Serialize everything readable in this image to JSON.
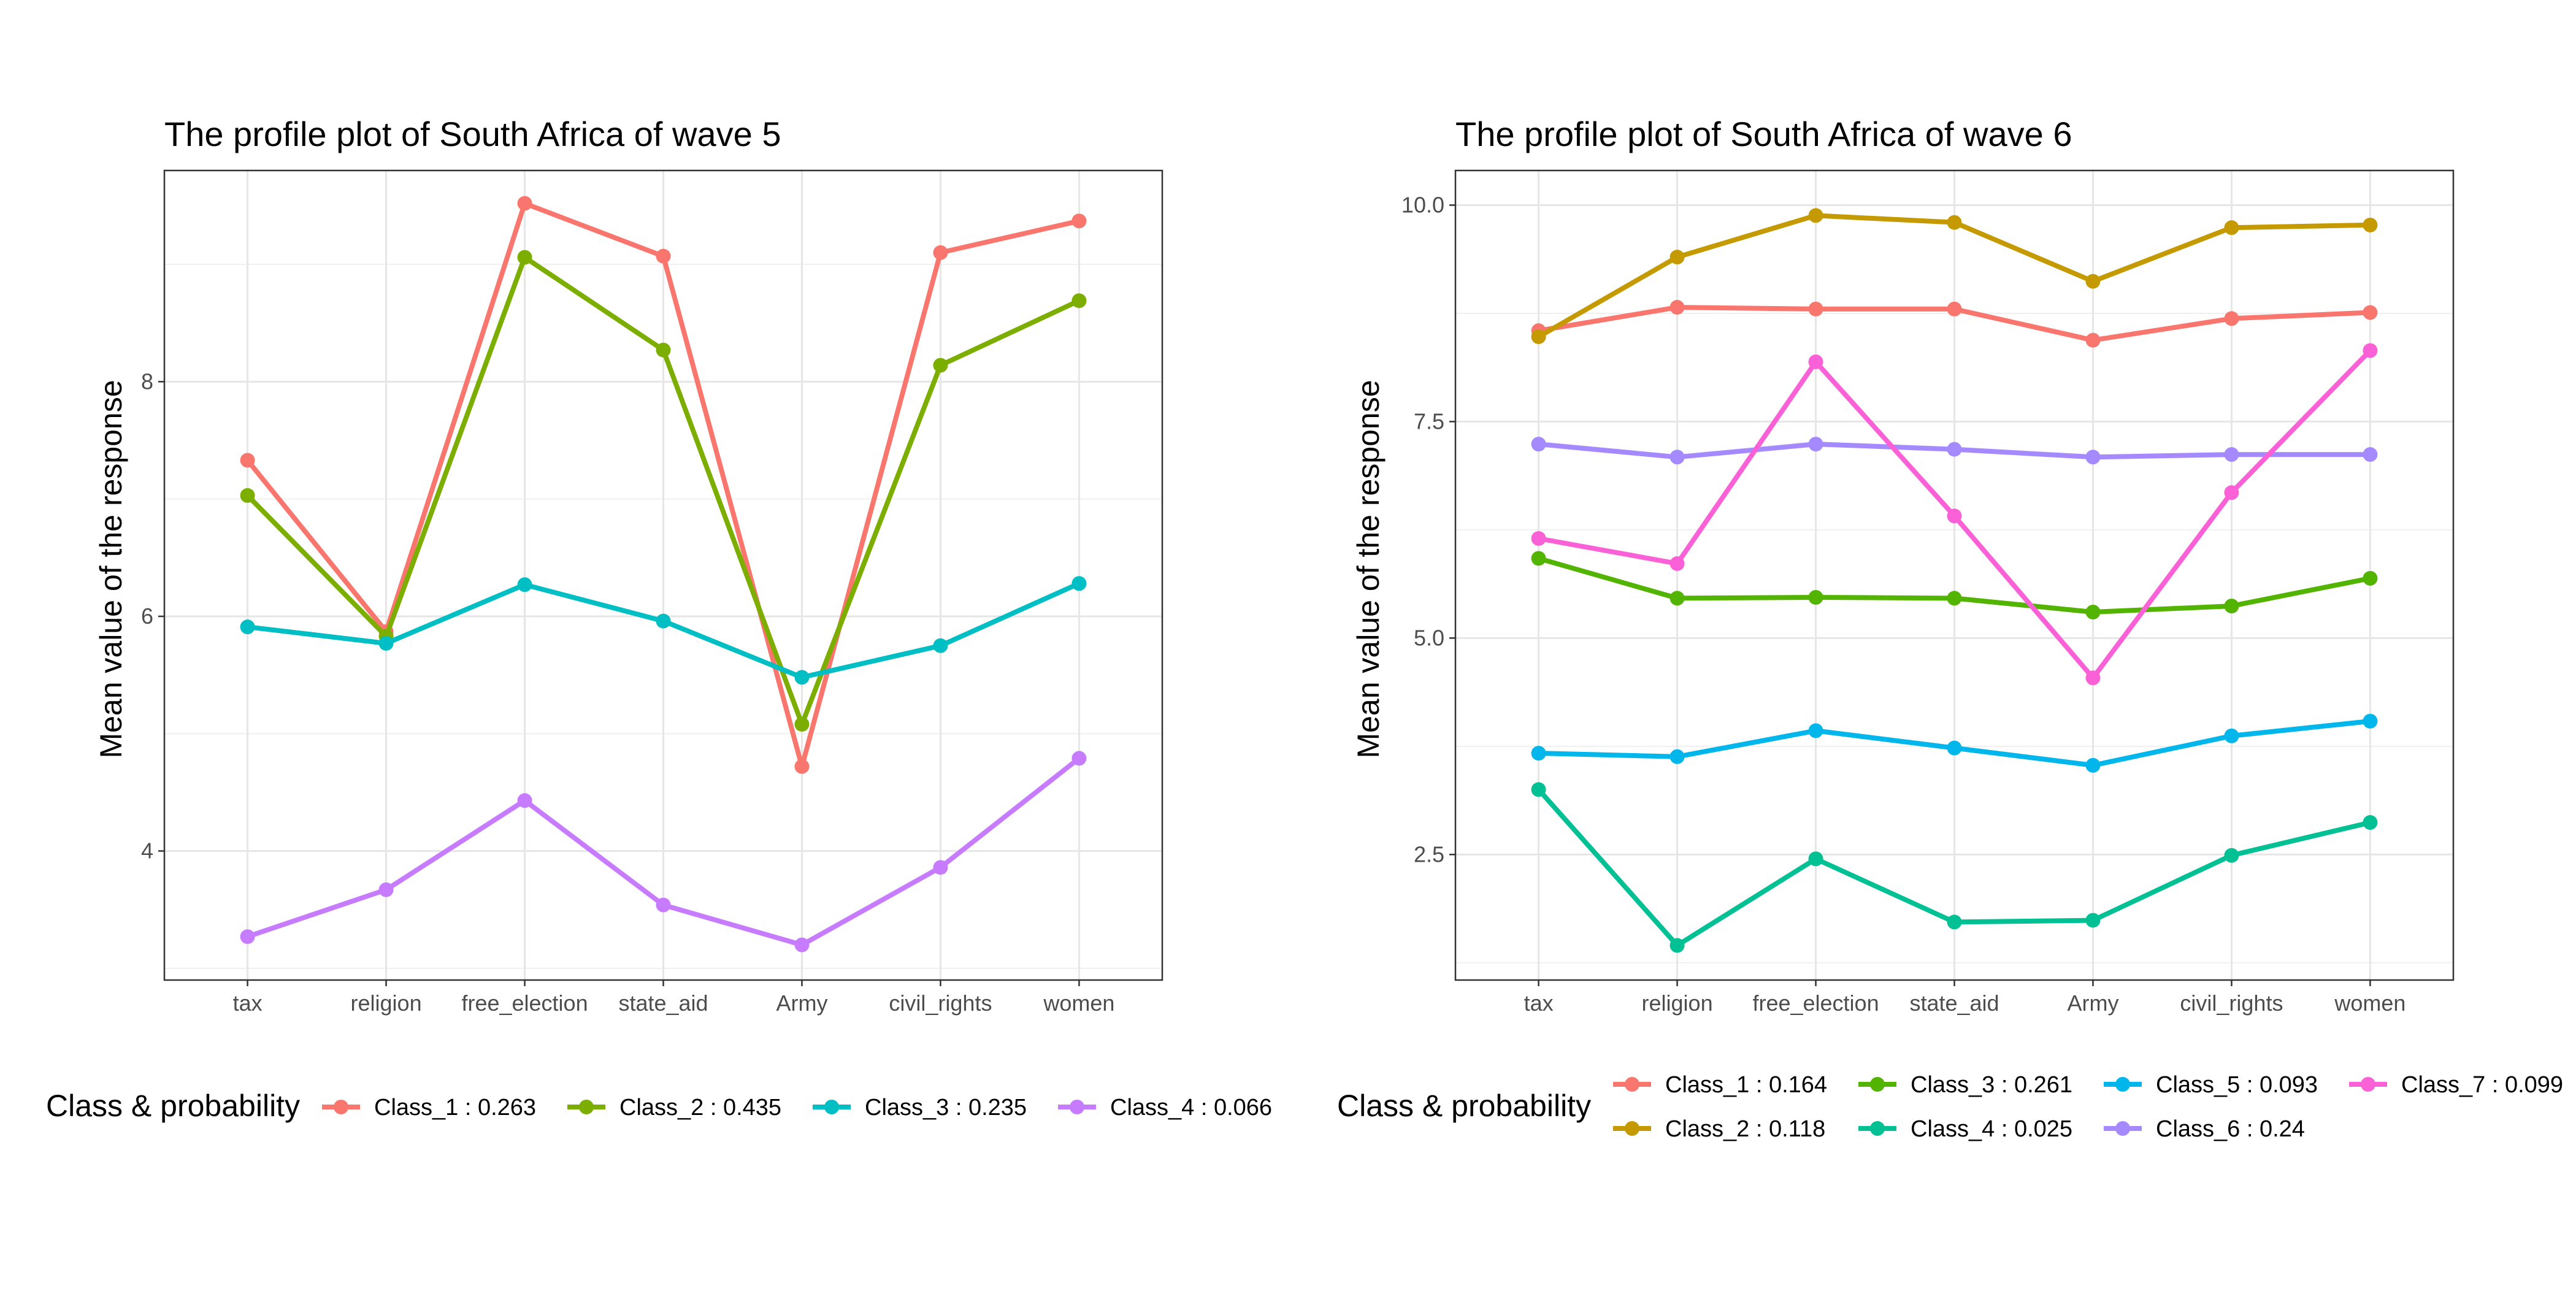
{
  "chart_data": [
    {
      "type": "line",
      "title": "The profile plot of South Africa of wave 5",
      "ylabel": "Mean value of the response",
      "xlabel": "",
      "categories": [
        "tax",
        "religion",
        "free_election",
        "state_aid",
        "Army",
        "civil_rights",
        "women"
      ],
      "ylim": [
        2.9,
        9.8
      ],
      "yticks": [
        4,
        6,
        8
      ],
      "yticks_labels": [
        "4",
        "6",
        "8"
      ],
      "grid": true,
      "legend": {
        "title": "Class & probability",
        "placement": "bottom",
        "entries": [
          "Class_1 : 0.263",
          "Class_2 : 0.435",
          "Class_3 : 0.235",
          "Class_4 : 0.066"
        ]
      },
      "series": [
        {
          "name": "Class_1 : 0.263",
          "color": "#F8766D",
          "values": [
            7.33,
            5.87,
            9.52,
            9.07,
            4.72,
            9.1,
            9.37
          ]
        },
        {
          "name": "Class_2 : 0.435",
          "color": "#7CAE00",
          "values": [
            7.03,
            5.83,
            9.06,
            8.27,
            5.08,
            8.14,
            8.69
          ]
        },
        {
          "name": "Class_3 : 0.235",
          "color": "#00BFC4",
          "values": [
            5.91,
            5.77,
            6.27,
            5.96,
            5.48,
            5.75,
            6.28
          ]
        },
        {
          "name": "Class_4 : 0.066",
          "color": "#C77CFF",
          "values": [
            3.27,
            3.67,
            4.43,
            3.54,
            3.2,
            3.86,
            4.79
          ]
        }
      ]
    },
    {
      "type": "line",
      "title": "The profile plot of South Africa of wave 6",
      "ylabel": "Mean value of the response",
      "xlabel": "",
      "categories": [
        "tax",
        "religion",
        "free_election",
        "state_aid",
        "Army",
        "civil_rights",
        "women"
      ],
      "ylim": [
        1.05,
        10.4
      ],
      "yticks": [
        2.5,
        5.0,
        7.5,
        10.0
      ],
      "yticks_labels": [
        "2.5",
        "5.0",
        "7.5",
        "10.0"
      ],
      "grid": true,
      "legend": {
        "title": "Class & probability",
        "placement": "bottom",
        "entries": [
          "Class_1 : 0.164",
          "Class_2 : 0.118",
          "Class_3 : 0.261",
          "Class_4 : 0.025",
          "Class_5 : 0.093",
          "Class_6 : 0.24",
          "Class_7 : 0.099"
        ]
      },
      "series": [
        {
          "name": "Class_1 : 0.164",
          "color": "#F8766D",
          "values": [
            8.55,
            8.82,
            8.8,
            8.8,
            8.44,
            8.69,
            8.76
          ]
        },
        {
          "name": "Class_2 : 0.118",
          "color": "#C49A00",
          "values": [
            8.48,
            9.4,
            9.88,
            9.8,
            9.12,
            9.74,
            9.77
          ]
        },
        {
          "name": "Class_3 : 0.261",
          "color": "#53B400",
          "values": [
            5.92,
            5.46,
            5.47,
            5.46,
            5.3,
            5.37,
            5.69
          ]
        },
        {
          "name": "Class_4 : 0.025",
          "color": "#00C094",
          "values": [
            3.25,
            1.45,
            2.45,
            1.72,
            1.74,
            2.49,
            2.87
          ]
        },
        {
          "name": "Class_5 : 0.093",
          "color": "#00B6EB",
          "values": [
            3.67,
            3.63,
            3.93,
            3.73,
            3.53,
            3.87,
            4.04
          ]
        },
        {
          "name": "Class_6 : 0.24",
          "color": "#A58AFF",
          "values": [
            7.24,
            7.09,
            7.24,
            7.18,
            7.09,
            7.12,
            7.12
          ]
        },
        {
          "name": "Class_7 : 0.099",
          "color": "#FB61D7",
          "values": [
            6.15,
            5.86,
            8.19,
            6.41,
            4.54,
            6.68,
            8.32
          ]
        }
      ]
    }
  ]
}
